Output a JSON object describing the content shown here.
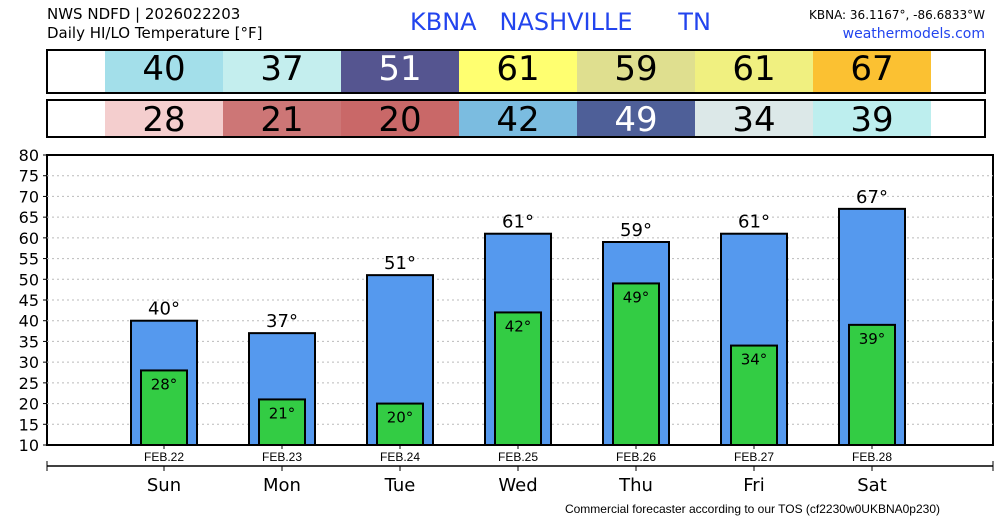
{
  "header": {
    "line1": "NWS NDFD | 2026022203",
    "line2": "Daily HI/LO Temperature [°F]",
    "station": "KBNA   NASHVILLE      TN",
    "coords": "KBNA: 36.1167°, -86.6833°W",
    "site": "weathermodels.com"
  },
  "footer": "Commercial forecaster according to our TOS (cf2230w0UKBNA0p230)",
  "colors": {
    "hi_bar": "#5599ee",
    "lo_bar": "#33cc44",
    "title": "#2244ee",
    "hi_cells": [
      "#a3dfea",
      "#c4eeee",
      "#555590",
      "#ffff70",
      "#dfdf8f",
      "#f0f080",
      "#fbc132"
    ],
    "lo_cells": [
      "#f4cece",
      "#cd7676",
      "#c96868",
      "#7bbce0",
      "#4e5f98",
      "#dce8e8",
      "#bdeeee"
    ],
    "hi_text": [
      "#000",
      "#000",
      "#fff",
      "#000",
      "#000",
      "#000",
      "#000"
    ],
    "lo_text": [
      "#000",
      "#000",
      "#000",
      "#000",
      "#fff",
      "#000",
      "#000"
    ]
  },
  "chart_data": {
    "type": "bar",
    "title": "Daily HI/LO Temperature [°F]",
    "categories": [
      "Sun",
      "Mon",
      "Tue",
      "Wed",
      "Thu",
      "Fri",
      "Sat"
    ],
    "dates": [
      "FEB.22",
      "FEB.23",
      "FEB.24",
      "FEB.25",
      "FEB.26",
      "FEB.27",
      "FEB.28"
    ],
    "series": [
      {
        "name": "HI",
        "values": [
          40,
          37,
          51,
          61,
          59,
          61,
          67
        ]
      },
      {
        "name": "LO",
        "values": [
          28,
          21,
          20,
          42,
          49,
          34,
          39
        ]
      }
    ],
    "ylim": [
      10,
      80
    ],
    "yticks": [
      10,
      15,
      20,
      25,
      30,
      35,
      40,
      45,
      50,
      55,
      60,
      65,
      70,
      75,
      80
    ],
    "grid": true
  }
}
